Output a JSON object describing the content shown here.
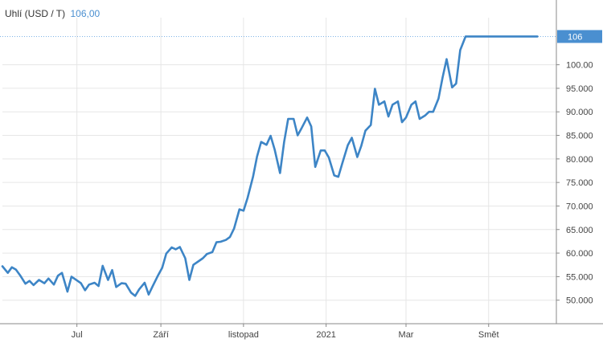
{
  "legend": {
    "name": "Uhlí (USD / T)",
    "value": "106,00"
  },
  "last_value_badge": "106",
  "colors": {
    "line": "#3d85c6",
    "grid": "#e6e6e6",
    "badge_bg": "#4a8fd0",
    "axis": "#888888"
  },
  "chart_data": {
    "type": "line",
    "title": "",
    "xlabel": "",
    "ylabel": "",
    "ylim": [
      45,
      110
    ],
    "y_ticks": [
      "100.00",
      "95.000",
      "90.000",
      "85.000",
      "80.000",
      "75.000",
      "70.000",
      "65.000",
      "60.000",
      "55.000",
      "50.000"
    ],
    "y_tick_values": [
      100,
      95,
      90,
      85,
      80,
      75,
      70,
      65,
      60,
      55,
      50
    ],
    "x_tick_labels": [
      "Jul",
      "Září",
      "listopad",
      "2021",
      "Mar",
      "Smět"
    ],
    "x_tick_dates": [
      "2020-07-01",
      "2020-09-01",
      "2020-11-01",
      "2021-01-01",
      "2021-03-01",
      "2021-05-01"
    ],
    "x_range": [
      "2020-05-07",
      "2021-06-20"
    ],
    "series": [
      {
        "name": "Uhlí (USD / T)",
        "x": [
          "2020-05-07",
          "2020-05-11",
          "2020-05-14",
          "2020-05-17",
          "2020-05-20",
          "2020-05-24",
          "2020-05-27",
          "2020-05-30",
          "2020-06-03",
          "2020-06-07",
          "2020-06-10",
          "2020-06-14",
          "2020-06-17",
          "2020-06-20",
          "2020-06-24",
          "2020-06-27",
          "2020-06-30",
          "2020-07-04",
          "2020-07-07",
          "2020-07-10",
          "2020-07-14",
          "2020-07-17",
          "2020-07-20",
          "2020-07-24",
          "2020-07-27",
          "2020-07-30",
          "2020-08-03",
          "2020-08-06",
          "2020-08-10",
          "2020-08-13",
          "2020-08-16",
          "2020-08-20",
          "2020-08-23",
          "2020-08-26",
          "2020-08-30",
          "2020-09-02",
          "2020-09-05",
          "2020-09-09",
          "2020-09-12",
          "2020-09-15",
          "2020-09-19",
          "2020-09-22",
          "2020-09-25",
          "2020-09-29",
          "2020-10-02",
          "2020-10-05",
          "2020-10-09",
          "2020-10-12",
          "2020-10-15",
          "2020-10-19",
          "2020-10-22",
          "2020-10-25",
          "2020-10-29",
          "2020-11-01",
          "2020-11-04",
          "2020-11-08",
          "2020-11-11",
          "2020-11-14",
          "2020-11-18",
          "2020-11-21",
          "2020-11-24",
          "2020-11-28",
          "2020-12-01",
          "2020-12-04",
          "2020-12-08",
          "2020-12-11",
          "2020-12-14",
          "2020-12-18",
          "2020-12-21",
          "2020-12-24",
          "2020-12-28",
          "2020-12-31",
          "2021-01-03",
          "2021-01-07",
          "2021-01-10",
          "2021-01-13",
          "2021-01-17",
          "2021-01-20",
          "2021-01-24",
          "2021-01-27",
          "2021-01-30",
          "2021-02-03",
          "2021-02-06",
          "2021-02-09",
          "2021-02-13",
          "2021-02-16",
          "2021-02-19",
          "2021-02-23",
          "2021-02-26",
          "2021-03-01",
          "2021-03-05",
          "2021-03-08",
          "2021-03-11",
          "2021-03-15",
          "2021-03-18",
          "2021-03-21",
          "2021-03-25",
          "2021-03-28",
          "2021-03-31",
          "2021-04-04",
          "2021-04-07",
          "2021-04-10",
          "2021-04-14",
          "2021-04-17",
          "2021-04-20",
          "2021-04-24",
          "2021-04-27",
          "2021-04-30",
          "2021-05-04",
          "2021-05-07",
          "2021-05-10",
          "2021-05-14",
          "2021-05-17",
          "2021-05-20",
          "2021-05-24",
          "2021-05-27",
          "2021-05-30",
          "2021-06-03",
          "2021-06-06"
        ],
        "values": [
          57.2,
          55.8,
          57.0,
          56.5,
          55.3,
          53.5,
          54.1,
          53.2,
          54.3,
          53.6,
          54.6,
          53.3,
          55.2,
          55.8,
          51.8,
          55.0,
          54.4,
          53.6,
          52.1,
          53.3,
          53.7,
          53.0,
          57.3,
          54.3,
          56.4,
          52.8,
          53.6,
          53.5,
          51.6,
          50.9,
          52.3,
          53.7,
          51.2,
          53.0,
          55.3,
          56.9,
          59.9,
          61.2,
          60.8,
          61.3,
          58.9,
          54.3,
          57.5,
          58.3,
          58.9,
          59.8,
          60.2,
          62.3,
          62.4,
          62.8,
          63.4,
          65.2,
          69.3,
          69.0,
          71.7,
          76.2,
          80.5,
          83.6,
          83.0,
          84.9,
          82.0,
          77.0,
          83.6,
          88.5,
          88.5,
          85.0,
          86.6,
          88.8,
          86.9,
          78.3,
          81.8,
          81.8,
          80.3,
          76.5,
          76.2,
          79.1,
          82.9,
          84.5,
          80.4,
          82.8,
          86.0,
          87.2,
          94.9,
          91.5,
          92.2,
          89.0,
          91.5,
          92.2,
          87.8,
          88.8,
          91.5,
          92.2,
          88.5,
          89.2,
          90.0,
          90.0,
          92.8,
          97.3,
          101.2,
          95.2,
          96.0,
          103.1,
          106.0,
          106.0,
          106.0,
          106.0,
          106.0,
          106.0,
          106.0,
          106.0,
          106.0,
          106.0,
          106.0,
          106.0,
          106.0,
          106.0,
          106.0,
          106.0,
          106.0
        ]
      }
    ]
  }
}
